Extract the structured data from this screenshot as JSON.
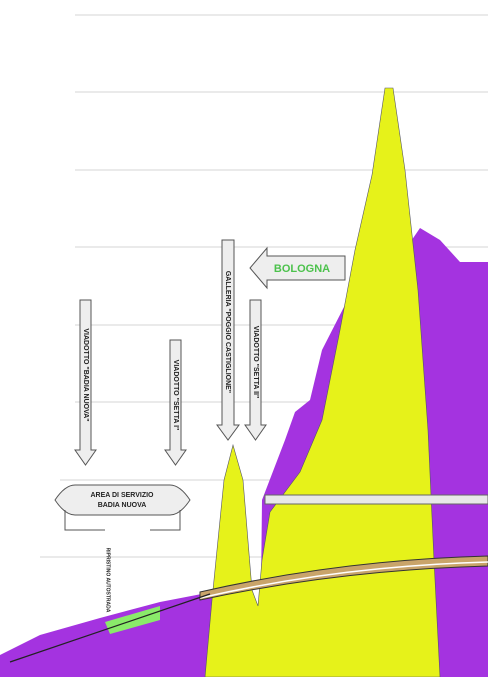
{
  "labels": {
    "viaduct_1": "VIADOTTO \"BADIA NUOVA\"",
    "viaduct_2": "VIADOTTO \"SETTA I\"",
    "tunnel": "GALLERIA \"POGGIO CASTIGLIONE\"",
    "viaduct_3": "VIADOTTO \"SETTA II\"",
    "direction": "BOLOGNA",
    "service_area_1": "AREA DI SERVIZIO",
    "service_area_2": "BADIA NUOVA",
    "note": "RIPRISTINO AUTOSTRADA"
  }
}
